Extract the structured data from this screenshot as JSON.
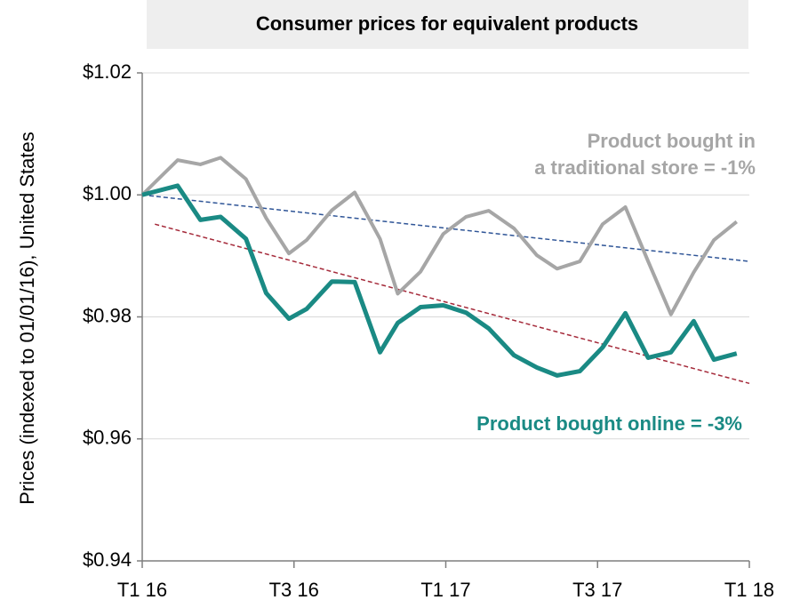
{
  "chart_data": {
    "type": "line",
    "title": "Consumer prices for equivalent products",
    "ylabel": "Prices (indexed to 01/01/16), United States",
    "xlim": [
      0,
      24
    ],
    "xticks": [
      {
        "value": 0,
        "label": "T1 16"
      },
      {
        "value": 6,
        "label": "T3 16"
      },
      {
        "value": 12,
        "label": "T1 17"
      },
      {
        "value": 18,
        "label": "T3 17"
      },
      {
        "value": 24,
        "label": "T1 18"
      }
    ],
    "ylim": [
      0.94,
      1.02
    ],
    "yticks": [
      {
        "value": 0.94,
        "label": "$0.94"
      },
      {
        "value": 0.96,
        "label": "$0.96"
      },
      {
        "value": 0.98,
        "label": "$0.98"
      },
      {
        "value": 1.0,
        "label": "$1.00"
      },
      {
        "value": 1.02,
        "label": "$1.02"
      }
    ],
    "grid": true,
    "series": [
      {
        "name": "Product bought in a traditional store",
        "color": "#a6a6a6",
        "x": [
          0,
          1.4,
          2.3,
          3.1,
          4.1,
          4.9,
          5.8,
          6.5,
          7.5,
          8.4,
          9.4,
          10.1,
          11.0,
          11.9,
          12.8,
          13.7,
          14.7,
          15.6,
          16.4,
          17.3,
          18.2,
          19.1,
          20.0,
          20.9,
          21.8,
          22.6,
          23.5
        ],
        "values": [
          1.0,
          1.0057,
          1.005,
          1.0061,
          1.0026,
          0.9962,
          0.9904,
          0.9926,
          0.9975,
          1.0004,
          0.9928,
          0.9838,
          0.9874,
          0.9936,
          0.9964,
          0.9974,
          0.9945,
          0.9901,
          0.9879,
          0.9891,
          0.9952,
          0.998,
          0.9891,
          0.9804,
          0.9873,
          0.9926,
          0.9956
        ]
      },
      {
        "name": "Product bought online",
        "color": "#1a8a84",
        "x": [
          0,
          1.4,
          2.3,
          3.1,
          4.1,
          4.9,
          5.8,
          6.5,
          7.5,
          8.4,
          9.4,
          10.1,
          11.0,
          11.9,
          12.8,
          13.7,
          14.7,
          15.6,
          16.4,
          17.3,
          18.2,
          19.1,
          20.0,
          20.9,
          21.8,
          22.6,
          23.5
        ],
        "values": [
          1.0,
          1.0015,
          0.9959,
          0.9964,
          0.9928,
          0.9839,
          0.9797,
          0.9813,
          0.9858,
          0.9857,
          0.9742,
          0.979,
          0.9816,
          0.9819,
          0.9807,
          0.9781,
          0.9737,
          0.9717,
          0.9704,
          0.9711,
          0.975,
          0.9806,
          0.9733,
          0.9742,
          0.9793,
          0.973,
          0.974
        ]
      }
    ],
    "trendlines": [
      {
        "color": "#2f5597",
        "x": [
          0,
          24
        ],
        "values": [
          1.0,
          0.9891
        ]
      },
      {
        "color": "#a52a3a",
        "x": [
          0.5,
          24
        ],
        "values": [
          0.9952,
          0.9691
        ]
      }
    ],
    "annotations": [
      {
        "lines": [
          "Product bought in",
          "a traditional store = -1%"
        ],
        "color": "#a6a6a6"
      },
      {
        "lines": [
          "Product bought online = -3%"
        ],
        "color": "#1a8a84"
      }
    ]
  }
}
